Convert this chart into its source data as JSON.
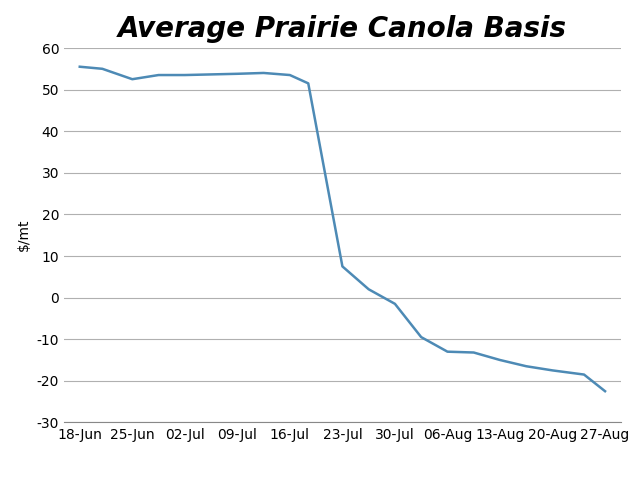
{
  "title": "Average Prairie Canola Basis",
  "ylabel": "$/mt",
  "x_labels": [
    "18-Jun",
    "25-Jun",
    "02-Jul",
    "09-Jul",
    "16-Jul",
    "23-Jul",
    "30-Jul",
    "06-Aug",
    "13-Aug",
    "20-Aug",
    "27-Aug"
  ],
  "line_color": "#4d8ab5",
  "line_width": 1.8,
  "ylim": [
    -30,
    60
  ],
  "yticks": [
    -30,
    -20,
    -10,
    0,
    10,
    20,
    30,
    40,
    50,
    60
  ],
  "background_color": "#ffffff",
  "grid_color": "#b0b0b0",
  "title_fontsize": 20,
  "axis_fontsize": 10,
  "ylabel_fontsize": 10,
  "line_x": [
    0.0,
    0.43,
    1.0,
    1.5,
    2.0,
    3.0,
    3.5,
    4.0,
    4.35,
    5.0,
    5.5,
    6.0,
    6.5,
    7.0,
    7.5,
    8.0,
    8.5,
    9.0,
    9.6,
    10.0
  ],
  "line_y": [
    55.5,
    55.0,
    52.5,
    53.5,
    53.5,
    53.8,
    54.0,
    53.5,
    51.5,
    7.5,
    2.0,
    -1.5,
    -9.5,
    -13.0,
    -13.2,
    -15.0,
    -16.5,
    -17.5,
    -18.5,
    -22.5
  ]
}
